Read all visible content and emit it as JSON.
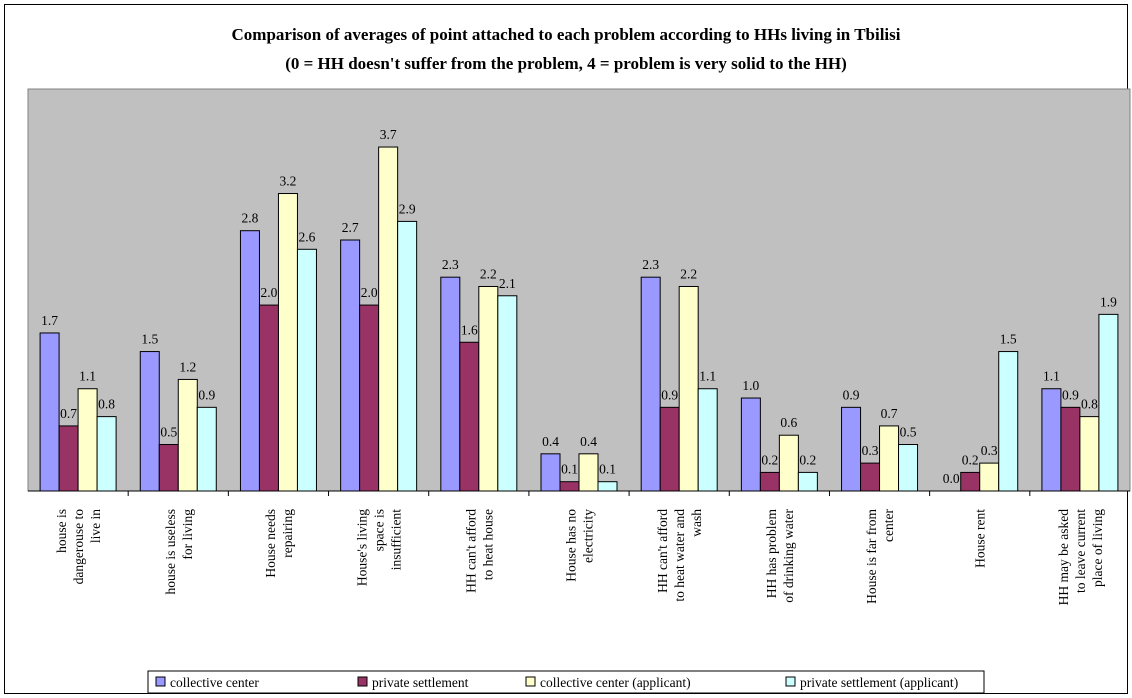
{
  "chart_data": {
    "type": "bar",
    "title_line1": "Comparison of averages of point attached to each problem according to HHs living in Tbilisi",
    "title_line2": "(0 = HH doesn't suffer from the problem, 4 = problem is very solid to the HH)",
    "ylim": [
      0,
      4
    ],
    "grid": false,
    "legend_position": "bottom",
    "categories": [
      [
        "house is",
        "dangerouse to",
        "live in"
      ],
      [
        "house is useless",
        "for living"
      ],
      [
        "House needs",
        "repairing"
      ],
      [
        "House's living",
        "space is",
        "insufficient"
      ],
      [
        "HH can't afford",
        "to heat house"
      ],
      [
        "House has no",
        "electricity"
      ],
      [
        "HH can't afford",
        "to heat water and",
        "wash"
      ],
      [
        "HH has problem",
        "of drinking water"
      ],
      [
        "House is far from",
        "center"
      ],
      [
        "House rent"
      ],
      [
        "HH may be asked",
        "to leave current",
        "place of living"
      ]
    ],
    "series": [
      {
        "name": "collective center",
        "color": "#9999ff",
        "values": [
          1.7,
          1.5,
          2.8,
          2.7,
          2.3,
          0.4,
          2.3,
          1.0,
          0.9,
          0.0,
          1.1
        ],
        "labels": [
          "1.7",
          "1.5",
          "2.8",
          "2.7",
          "2.3",
          "0.4",
          "2.3",
          "1.0",
          "0.9",
          "0.0",
          "1.1"
        ]
      },
      {
        "name": "private settlement",
        "color": "#993366",
        "values": [
          0.7,
          0.5,
          2.0,
          2.0,
          1.6,
          0.1,
          0.9,
          0.2,
          0.3,
          0.2,
          0.9
        ],
        "labels": [
          "0.7",
          "0.5",
          "2.0",
          "2.0",
          "1.6",
          "0.1",
          "0.9",
          "0.2",
          "0.3",
          "0.2",
          "0.9"
        ]
      },
      {
        "name": "collective center (applicant)",
        "color": "#ffffcc",
        "values": [
          1.1,
          1.2,
          3.2,
          3.7,
          2.2,
          0.4,
          2.2,
          0.6,
          0.7,
          0.3,
          0.8
        ],
        "labels": [
          "1.1",
          "1.2",
          "3.2",
          "3.7",
          "2.2",
          "0.4",
          "2.2",
          "0.6",
          "0.7",
          "0.3",
          "0.8"
        ]
      },
      {
        "name": "private settlement (applicant)",
        "color": "#ccffff",
        "values": [
          0.8,
          0.9,
          2.6,
          2.9,
          2.1,
          0.1,
          1.1,
          0.2,
          0.5,
          1.5,
          1.9
        ],
        "labels": [
          "0.8",
          "0.9",
          "2.6",
          "2.9",
          "2.1",
          "0.1",
          "1.1",
          "0.2",
          "0.5",
          "1.5",
          "1.9"
        ]
      }
    ],
    "plot_background": "#c0c0c0"
  }
}
